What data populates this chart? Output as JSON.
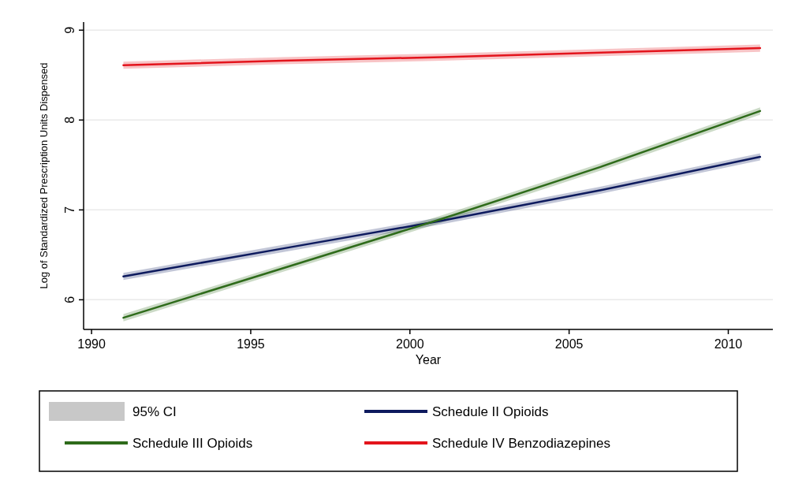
{
  "chart_data": {
    "type": "line",
    "xlabel": "Year",
    "ylabel": "Log of Standardized Prescription Units Dispensed",
    "xlim": [
      1989.75,
      2011.4
    ],
    "xticks": [
      1990,
      1995,
      2000,
      2005,
      2010
    ],
    "ylim": [
      5.67,
      9.09
    ],
    "yticks": [
      6,
      7,
      8,
      9
    ],
    "grid": "y",
    "legend": "bottom",
    "annotations": [
      "95% CI"
    ],
    "series": [
      {
        "name": "Schedule II Opioids",
        "color": "#0d1a5e",
        "x": [
          1991,
          1996,
          2001,
          2006,
          2011
        ],
        "values": [
          6.26,
          6.57,
          6.88,
          7.22,
          7.59
        ],
        "lower": [
          6.22,
          6.53,
          6.84,
          7.18,
          7.55
        ],
        "upper": [
          6.3,
          6.61,
          6.92,
          7.26,
          7.63
        ]
      },
      {
        "name": "Schedule III Opioids",
        "color": "#2e6b1a",
        "x": [
          1991,
          1996,
          2001,
          2006,
          2011
        ],
        "values": [
          5.8,
          6.35,
          6.9,
          7.48,
          8.1
        ],
        "lower": [
          5.76,
          6.31,
          6.86,
          7.44,
          8.06
        ],
        "upper": [
          5.84,
          6.39,
          6.94,
          7.52,
          8.14
        ]
      },
      {
        "name": "Schedule IV Benzodiazepines",
        "color": "#e3141c",
        "x": [
          1991,
          1996,
          2001,
          2006,
          2011
        ],
        "values": [
          8.61,
          8.66,
          8.7,
          8.75,
          8.8
        ],
        "lower": [
          8.57,
          8.62,
          8.66,
          8.71,
          8.76
        ],
        "upper": [
          8.65,
          8.7,
          8.74,
          8.79,
          8.84
        ]
      }
    ]
  }
}
